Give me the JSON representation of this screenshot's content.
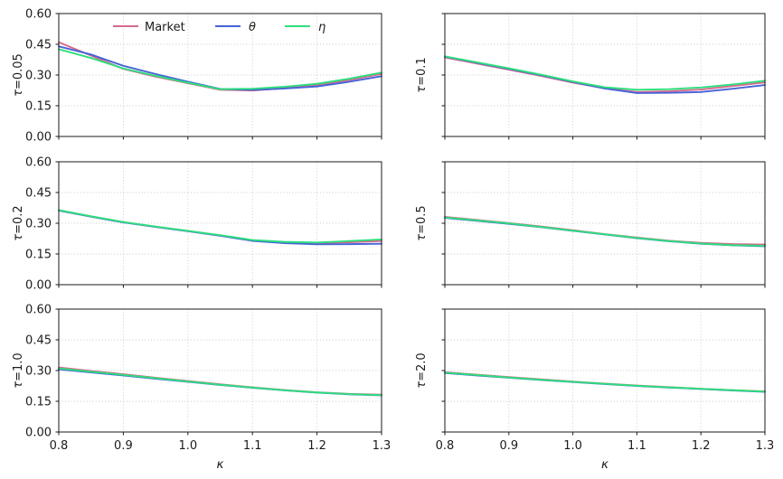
{
  "figure": {
    "xlabel": "κ",
    "x_tick_labels": [
      "0.8",
      "0.9",
      "1.0",
      "1.1",
      "1.2",
      "1.3"
    ],
    "x_ticks": [
      0.8,
      0.9,
      1.0,
      1.1,
      1.2,
      1.3
    ],
    "y_tick_labels": [
      "0.00",
      "0.15",
      "0.30",
      "0.45",
      "0.60"
    ],
    "y_ticks": [
      0.0,
      0.15,
      0.3,
      0.45,
      0.6
    ],
    "grid": "dotted",
    "background_color": "#ffffff",
    "legend": {
      "frame": false,
      "position": "top of first subplot, horizontal",
      "entries": [
        {
          "label": "Market",
          "color": "#d5698e"
        },
        {
          "label": "θ",
          "color": "#4763d8"
        },
        {
          "label": "η",
          "color": "#2ddf7c"
        }
      ]
    }
  },
  "chart_data": [
    {
      "type": "line",
      "ylabel": "τ=0.05",
      "xlim": [
        0.8,
        1.3
      ],
      "ylim": [
        0.0,
        0.6
      ],
      "x": [
        0.8,
        0.85,
        0.9,
        0.95,
        1.0,
        1.05,
        1.1,
        1.15,
        1.2,
        1.25,
        1.3
      ],
      "series": [
        {
          "name": "Market",
          "values": [
            0.46,
            0.395,
            0.33,
            0.292,
            0.26,
            0.228,
            0.224,
            0.236,
            0.25,
            0.276,
            0.305
          ]
        },
        {
          "name": "θ",
          "values": [
            0.44,
            0.4,
            0.345,
            0.305,
            0.267,
            0.232,
            0.227,
            0.234,
            0.244,
            0.267,
            0.294
          ]
        },
        {
          "name": "η",
          "values": [
            0.426,
            0.383,
            0.332,
            0.296,
            0.262,
            0.231,
            0.233,
            0.243,
            0.257,
            0.282,
            0.312
          ]
        }
      ]
    },
    {
      "type": "line",
      "ylabel": "τ=0.1",
      "xlim": [
        0.8,
        1.3
      ],
      "ylim": [
        0.0,
        0.6
      ],
      "x": [
        0.8,
        0.85,
        0.9,
        0.95,
        1.0,
        1.05,
        1.1,
        1.15,
        1.2,
        1.25,
        1.3
      ],
      "series": [
        {
          "name": "Market",
          "values": [
            0.386,
            0.356,
            0.326,
            0.296,
            0.263,
            0.235,
            0.217,
            0.221,
            0.229,
            0.246,
            0.264
          ]
        },
        {
          "name": "θ",
          "values": [
            0.39,
            0.36,
            0.33,
            0.299,
            0.266,
            0.234,
            0.212,
            0.213,
            0.217,
            0.233,
            0.251
          ]
        },
        {
          "name": "η",
          "values": [
            0.391,
            0.362,
            0.333,
            0.302,
            0.269,
            0.24,
            0.228,
            0.231,
            0.239,
            0.254,
            0.272
          ]
        }
      ]
    },
    {
      "type": "line",
      "ylabel": "τ=0.2",
      "xlim": [
        0.8,
        1.3
      ],
      "ylim": [
        0.0,
        0.6
      ],
      "x": [
        0.8,
        0.85,
        0.9,
        0.95,
        1.0,
        1.05,
        1.1,
        1.15,
        1.2,
        1.25,
        1.3
      ],
      "series": [
        {
          "name": "Market",
          "values": [
            0.363,
            0.333,
            0.305,
            0.283,
            0.262,
            0.24,
            0.216,
            0.206,
            0.202,
            0.207,
            0.213
          ]
        },
        {
          "name": "θ",
          "values": [
            0.362,
            0.332,
            0.304,
            0.282,
            0.261,
            0.239,
            0.214,
            0.203,
            0.197,
            0.198,
            0.2
          ]
        },
        {
          "name": "η",
          "values": [
            0.364,
            0.334,
            0.306,
            0.284,
            0.263,
            0.242,
            0.218,
            0.209,
            0.206,
            0.213,
            0.221
          ]
        }
      ]
    },
    {
      "type": "line",
      "ylabel": "τ=0.5",
      "xlim": [
        0.8,
        1.3
      ],
      "ylim": [
        0.0,
        0.6
      ],
      "x": [
        0.8,
        0.85,
        0.9,
        0.95,
        1.0,
        1.05,
        1.1,
        1.15,
        1.2,
        1.25,
        1.3
      ],
      "series": [
        {
          "name": "Market",
          "values": [
            0.331,
            0.316,
            0.301,
            0.284,
            0.266,
            0.247,
            0.23,
            0.215,
            0.204,
            0.198,
            0.196
          ]
        },
        {
          "name": "θ",
          "values": [
            0.326,
            0.312,
            0.297,
            0.281,
            0.263,
            0.245,
            0.227,
            0.212,
            0.2,
            0.192,
            0.188
          ]
        },
        {
          "name": "η",
          "values": [
            0.328,
            0.314,
            0.299,
            0.282,
            0.264,
            0.246,
            0.228,
            0.213,
            0.201,
            0.193,
            0.19
          ]
        }
      ]
    },
    {
      "type": "line",
      "ylabel": "τ=1.0",
      "xlim": [
        0.8,
        1.3
      ],
      "ylim": [
        0.0,
        0.6
      ],
      "x": [
        0.8,
        0.85,
        0.9,
        0.95,
        1.0,
        1.05,
        1.1,
        1.15,
        1.2,
        1.25,
        1.3
      ],
      "series": [
        {
          "name": "Market",
          "values": [
            0.315,
            0.298,
            0.282,
            0.265,
            0.249,
            0.233,
            0.218,
            0.205,
            0.194,
            0.186,
            0.182
          ]
        },
        {
          "name": "θ",
          "values": [
            0.306,
            0.291,
            0.276,
            0.26,
            0.245,
            0.23,
            0.216,
            0.203,
            0.192,
            0.184,
            0.179
          ]
        },
        {
          "name": "η",
          "values": [
            0.31,
            0.294,
            0.279,
            0.263,
            0.247,
            0.231,
            0.217,
            0.204,
            0.193,
            0.185,
            0.18
          ]
        }
      ]
    },
    {
      "type": "line",
      "ylabel": "τ=2.0",
      "xlim": [
        0.8,
        1.3
      ],
      "ylim": [
        0.0,
        0.6
      ],
      "x": [
        0.8,
        0.85,
        0.9,
        0.95,
        1.0,
        1.05,
        1.1,
        1.15,
        1.2,
        1.25,
        1.3
      ],
      "series": [
        {
          "name": "Market",
          "values": [
            0.292,
            0.28,
            0.268,
            0.257,
            0.246,
            0.236,
            0.227,
            0.219,
            0.211,
            0.204,
            0.198
          ]
        },
        {
          "name": "θ",
          "values": [
            0.288,
            0.276,
            0.265,
            0.254,
            0.244,
            0.234,
            0.225,
            0.217,
            0.21,
            0.203,
            0.196
          ]
        },
        {
          "name": "η",
          "values": [
            0.29,
            0.278,
            0.266,
            0.255,
            0.245,
            0.235,
            0.226,
            0.218,
            0.211,
            0.204,
            0.197
          ]
        }
      ]
    }
  ]
}
